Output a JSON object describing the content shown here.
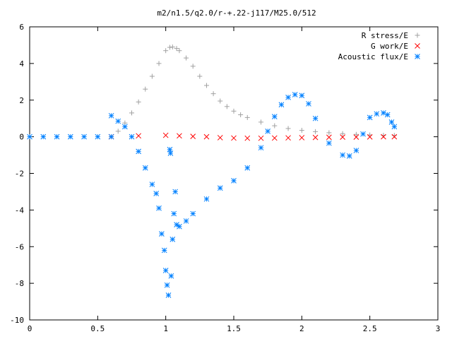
{
  "chart_data": {
    "type": "scatter",
    "title": "m2/n1.5/q2.0/r-+.22-j117/M25.0/512",
    "xlabel": "",
    "ylabel": "",
    "xlim": [
      0,
      3
    ],
    "ylim": [
      -10,
      6
    ],
    "x_ticks": [
      0,
      0.5,
      1,
      1.5,
      2,
      2.5,
      3
    ],
    "x_tick_labels": [
      "0",
      "0.5",
      "1",
      "1.5",
      "2",
      "2.5",
      "3"
    ],
    "y_ticks": [
      -10,
      -8,
      -6,
      -4,
      -2,
      0,
      2,
      4,
      6
    ],
    "y_tick_labels": [
      "-10",
      "-8",
      "-6",
      "-4",
      "-2",
      "0",
      "2",
      "4",
      "6"
    ],
    "grid": false,
    "legend_position": "top-right",
    "series": [
      {
        "name": "R stress/E",
        "marker": "+",
        "color": "#a0a0a0",
        "x": [
          0.6,
          0.65,
          0.7,
          0.75,
          0.8,
          0.85,
          0.9,
          0.95,
          1.0,
          1.03,
          1.05,
          1.08,
          1.1,
          1.15,
          1.2,
          1.25,
          1.3,
          1.35,
          1.4,
          1.45,
          1.5,
          1.55,
          1.6,
          1.7,
          1.8,
          1.9,
          2.0,
          2.1,
          2.2,
          2.3,
          2.4,
          2.5,
          2.6,
          2.68
        ],
        "y": [
          0.0,
          0.3,
          0.75,
          1.3,
          1.9,
          2.6,
          3.3,
          4.0,
          4.7,
          4.88,
          4.9,
          4.82,
          4.7,
          4.3,
          3.85,
          3.3,
          2.8,
          2.35,
          1.95,
          1.65,
          1.4,
          1.2,
          1.05,
          0.8,
          0.6,
          0.45,
          0.35,
          0.28,
          0.22,
          0.17,
          0.13,
          0.1,
          0.08,
          0.07
        ]
      },
      {
        "name": "G work/E",
        "marker": "x",
        "color": "#ff0000",
        "x": [
          0.6,
          0.8,
          1.0,
          1.1,
          1.2,
          1.3,
          1.4,
          1.5,
          1.6,
          1.7,
          1.8,
          1.9,
          2.0,
          2.1,
          2.2,
          2.3,
          2.4,
          2.5,
          2.6,
          2.68
        ],
        "y": [
          0.0,
          0.05,
          0.08,
          0.05,
          0.02,
          0.0,
          -0.05,
          -0.07,
          -0.08,
          -0.08,
          -0.07,
          -0.06,
          -0.05,
          -0.04,
          -0.03,
          -0.02,
          -0.02,
          -0.01,
          0.0,
          0.0
        ]
      },
      {
        "name": "Acoustic flux/E",
        "marker": "*",
        "color": "#0080ff",
        "x": [
          0.0,
          0.1,
          0.2,
          0.3,
          0.4,
          0.5,
          0.6,
          0.6,
          0.65,
          0.7,
          0.75,
          0.8,
          0.85,
          0.9,
          0.93,
          0.95,
          0.97,
          0.99,
          1.0,
          1.01,
          1.02,
          1.03,
          1.035,
          1.04,
          1.05,
          1.06,
          1.07,
          1.08,
          1.1,
          1.15,
          1.2,
          1.3,
          1.4,
          1.5,
          1.6,
          1.7,
          1.75,
          1.8,
          1.85,
          1.9,
          1.95,
          2.0,
          2.05,
          2.1,
          2.2,
          2.3,
          2.35,
          2.4,
          2.45,
          2.5,
          2.55,
          2.6,
          2.63,
          2.66,
          2.68
        ],
        "y": [
          0.0,
          0.0,
          0.0,
          0.0,
          0.0,
          0.0,
          0.0,
          1.15,
          0.85,
          0.55,
          0.0,
          -0.8,
          -1.7,
          -2.6,
          -3.1,
          -3.9,
          -5.3,
          -6.2,
          -7.3,
          -8.1,
          -8.65,
          -0.7,
          -0.9,
          -7.6,
          -5.6,
          -4.2,
          -3.0,
          -4.8,
          -4.9,
          -4.6,
          -4.2,
          -3.4,
          -2.8,
          -2.4,
          -1.7,
          -0.6,
          0.3,
          1.1,
          1.75,
          2.15,
          2.3,
          2.25,
          1.8,
          1.0,
          -0.35,
          -1.0,
          -1.05,
          -0.75,
          0.15,
          1.05,
          1.25,
          1.3,
          1.2,
          0.8,
          0.55
        ]
      }
    ]
  }
}
